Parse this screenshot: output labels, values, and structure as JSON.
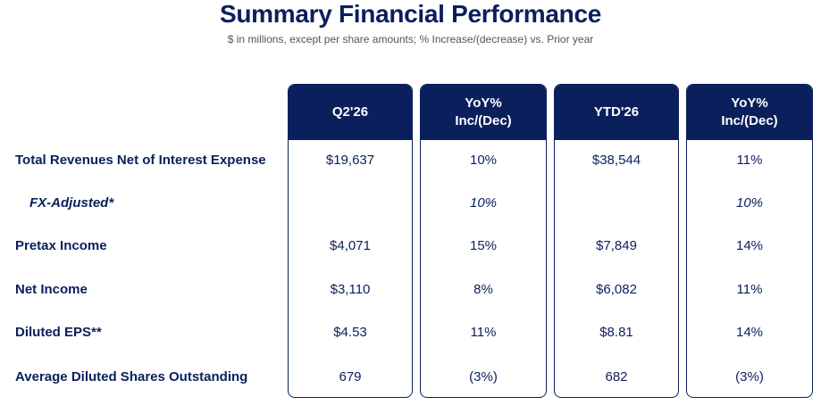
{
  "header": {
    "title": "Summary Financial Performance",
    "subtitle": "$ in millions, except per share amounts; % Increase/(decrease) vs. Prior year"
  },
  "columns": [
    {
      "line1": "Q2'26",
      "line2": ""
    },
    {
      "line1": "YoY%",
      "line2": "Inc/(Dec)"
    },
    {
      "line1": "YTD'26",
      "line2": ""
    },
    {
      "line1": "YoY%",
      "line2": "Inc/(Dec)"
    }
  ],
  "rows": [
    {
      "label": "Total Revenues Net of Interest Expense",
      "values": [
        "$19,637",
        "10%",
        "$38,544",
        "11%"
      ]
    },
    {
      "label": "FX-Adjusted*",
      "values": [
        "",
        "10%",
        "",
        "10%"
      ]
    },
    {
      "label": "Pretax Income",
      "values": [
        "$4,071",
        "15%",
        "$7,849",
        "14%"
      ]
    },
    {
      "label": "Net Income",
      "values": [
        "$3,110",
        "8%",
        "$6,082",
        "11%"
      ]
    },
    {
      "label": "Diluted EPS**",
      "values": [
        "$4.53",
        "11%",
        "$8.81",
        "14%"
      ]
    },
    {
      "label": "Average Diluted Shares Outstanding",
      "values": [
        "679",
        "(3%)",
        "682",
        "(3%)"
      ]
    }
  ],
  "colors": {
    "navy": "#0a1f5c",
    "subtitle": "#555555"
  }
}
